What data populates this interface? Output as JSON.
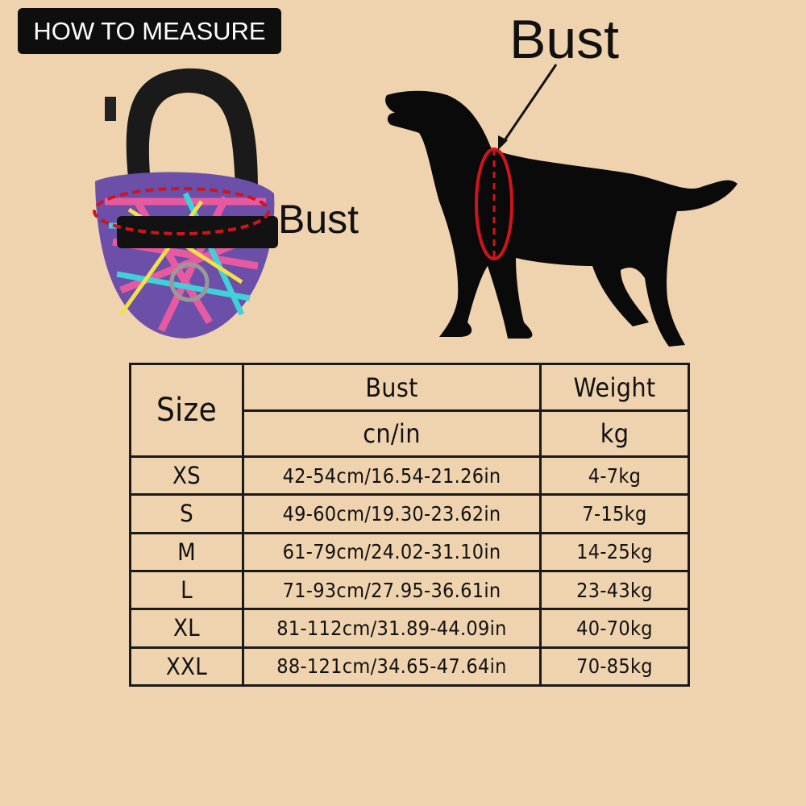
{
  "header": {
    "badge": "HOW TO MEASURE",
    "bust_label_dog": "Bust",
    "bust_label_harness": "Bust"
  },
  "colors": {
    "background": "#efd3af",
    "measure_line": "#d0141c",
    "silhouette": "#0a0a0a"
  },
  "table": {
    "col_size": "Size",
    "col_bust": "Bust",
    "col_bust_unit": "cn/in",
    "col_weight": "Weight",
    "col_weight_unit": "kg",
    "rows": [
      {
        "size": "XS",
        "bust": "42-54cm/16.54-21.26in",
        "weight": "4-7kg"
      },
      {
        "size": "S",
        "bust": "49-60cm/19.30-23.62in",
        "weight": "7-15kg"
      },
      {
        "size": "M",
        "bust": "61-79cm/24.02-31.10in",
        "weight": "14-25kg"
      },
      {
        "size": "L",
        "bust": "71-93cm/27.95-36.61in",
        "weight": "23-43kg"
      },
      {
        "size": "XL",
        "bust": "81-112cm/31.89-44.09in",
        "weight": "40-70kg"
      },
      {
        "size": "XXL",
        "bust": "88-121cm/34.65-47.64in",
        "weight": "70-85kg"
      }
    ]
  }
}
